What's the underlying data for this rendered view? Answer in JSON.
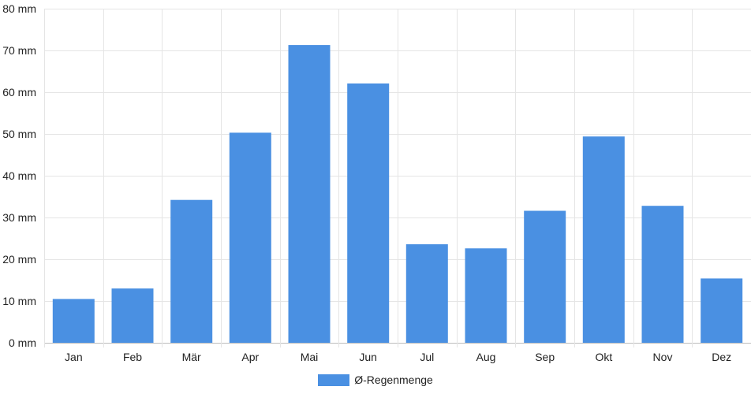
{
  "chart_data": {
    "type": "bar",
    "title": "",
    "xlabel": "",
    "ylabel": "",
    "categories": [
      "Jan",
      "Feb",
      "Mär",
      "Apr",
      "Mai",
      "Jun",
      "Jul",
      "Aug",
      "Sep",
      "Okt",
      "Nov",
      "Dez"
    ],
    "series": [
      {
        "name": "Ø-Regenmenge",
        "color": "#4a90e2",
        "values": [
          10.5,
          13,
          34.2,
          50.3,
          71.3,
          62.1,
          23.6,
          22.6,
          31.6,
          49.4,
          32.8,
          15.4
        ]
      }
    ],
    "ylim": [
      0,
      80
    ],
    "yticks": [
      0,
      10,
      20,
      30,
      40,
      50,
      60,
      70,
      80
    ],
    "ytick_labels": [
      "0 mm",
      "10 mm",
      "20 mm",
      "30 mm",
      "40 mm",
      "50 mm",
      "60 mm",
      "70 mm",
      "80 mm"
    ],
    "grid": true,
    "legend_position": "bottom-center"
  }
}
